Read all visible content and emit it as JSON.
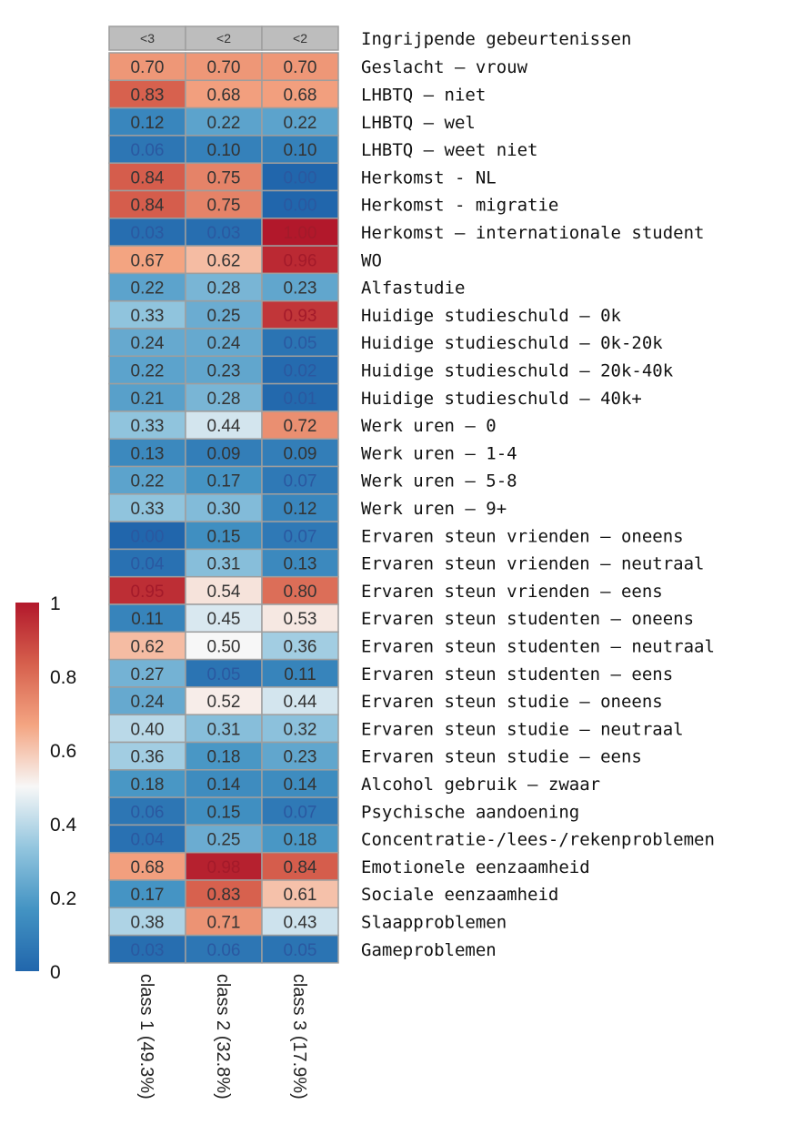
{
  "chart_data": {
    "type": "heatmap",
    "title": "",
    "header_row": {
      "label": "Ingrijpende gebeurtenissen",
      "values": [
        "<3",
        "<2",
        "<2"
      ]
    },
    "columns": [
      "class 1 (49.3%)",
      "class 2 (32.8%)",
      "class 3 (17.9%)"
    ],
    "rows": [
      "Geslacht – vrouw",
      "LHBTQ – niet",
      "LHBTQ – wel",
      "LHBTQ – weet niet",
      "Herkomst - NL",
      "Herkomst - migratie",
      "Herkomst – internationale student",
      "WO",
      "Alfastudie",
      "Huidige studieschuld – 0k",
      "Huidige studieschuld –  0k-20k",
      "Huidige studieschuld – 20k-40k",
      "Huidige studieschuld – 40k+",
      "Werk uren – 0",
      "Werk uren – 1-4",
      "Werk uren – 5-8",
      "Werk uren – 9+",
      "Ervaren steun vrienden – oneens",
      "Ervaren steun vrienden – neutraal",
      "Ervaren steun vrienden – eens",
      "Ervaren steun studenten – oneens",
      "Ervaren steun studenten – neutraal",
      "Ervaren steun studenten – eens",
      "Ervaren steun studie – oneens",
      "Ervaren steun studie – neutraal",
      "Ervaren steun studie – eens",
      "Alcohol gebruik – zwaar",
      "Psychische aandoening",
      "Concentratie-/lees-/rekenproblemen",
      "Emotionele eenzaamheid",
      "Sociale eenzaamheid",
      "Slaapproblemen",
      "Gameproblemen"
    ],
    "values": [
      [
        "0.70",
        "0.70",
        "0.70"
      ],
      [
        "0.83",
        "0.68",
        "0.68"
      ],
      [
        "0.12",
        "0.22",
        "0.22"
      ],
      [
        "0.06",
        "0.10",
        "0.10"
      ],
      [
        "0.84",
        "0.75",
        "0.00"
      ],
      [
        "0.84",
        "0.75",
        "0.00"
      ],
      [
        "0.03",
        "0.03",
        "1.00"
      ],
      [
        "0.67",
        "0.62",
        "0.96"
      ],
      [
        "0.22",
        "0.28",
        "0.23"
      ],
      [
        "0.33",
        "0.25",
        "0.93"
      ],
      [
        "0.24",
        "0.24",
        "0.05"
      ],
      [
        "0.22",
        "0.23",
        "0.02"
      ],
      [
        "0.21",
        "0.28",
        "0.01"
      ],
      [
        "0.33",
        "0.44",
        "0.72"
      ],
      [
        "0.13",
        "0.09",
        "0.09"
      ],
      [
        "0.22",
        "0.17",
        "0.07"
      ],
      [
        "0.33",
        "0.30",
        "0.12"
      ],
      [
        "0.00",
        "0.15",
        "0.07"
      ],
      [
        "0.04",
        "0.31",
        "0.13"
      ],
      [
        "0.95",
        "0.54",
        "0.80"
      ],
      [
        "0.11",
        "0.45",
        "0.53"
      ],
      [
        "0.62",
        "0.50",
        "0.36"
      ],
      [
        "0.27",
        "0.05",
        "0.11"
      ],
      [
        "0.24",
        "0.52",
        "0.44"
      ],
      [
        "0.40",
        "0.31",
        "0.32"
      ],
      [
        "0.36",
        "0.18",
        "0.23"
      ],
      [
        "0.18",
        "0.14",
        "0.14"
      ],
      [
        "0.06",
        "0.15",
        "0.07"
      ],
      [
        "0.04",
        "0.25",
        "0.18"
      ],
      [
        "0.68",
        "0.98",
        "0.84"
      ],
      [
        "0.17",
        "0.83",
        "0.61"
      ],
      [
        "0.38",
        "0.71",
        "0.43"
      ],
      [
        "0.03",
        "0.06",
        "0.05"
      ]
    ],
    "color_scale": {
      "min": 0,
      "max": 1,
      "ticks": [
        "0",
        "0.2",
        "0.4",
        "0.6",
        "0.8",
        "1"
      ],
      "stops": [
        "#2166ac",
        "#4393c3",
        "#92c5de",
        "#f7f7f7",
        "#f4a582",
        "#d6604d",
        "#b2182b"
      ]
    },
    "header_color": "#bdbdbd",
    "cell_border_color": "#9e9e9e"
  }
}
